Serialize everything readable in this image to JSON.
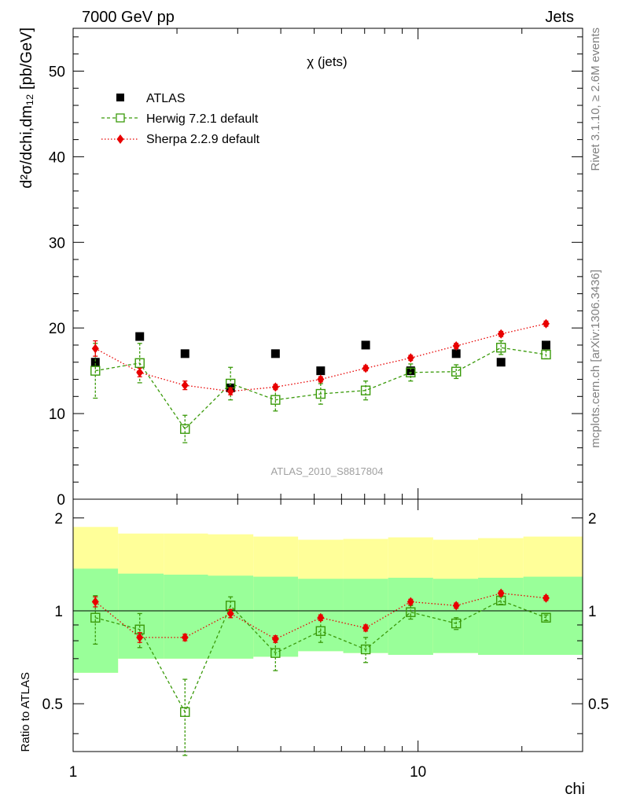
{
  "header": {
    "left": "7000 GeV pp",
    "right": "Jets"
  },
  "side_labels": {
    "rivet": "Rivet 3.1.10, ≥ 2.6M events",
    "mcplots": "mcplots.cern.ch [arXiv:1306.3436]"
  },
  "chart_data": [
    {
      "type": "scatter",
      "title": "χ (jets)",
      "watermark": "ATLAS_2010_S8817804",
      "ylabel": "d²σ/dchi,dm₁₂ [pb/GeV]",
      "xscale": "log",
      "xlim": [
        1,
        30
      ],
      "ylim": [
        0,
        55
      ],
      "yticks": [
        0,
        10,
        20,
        30,
        40,
        50
      ],
      "legend_position": "top-left",
      "series": [
        {
          "name": "ATLAS",
          "color": "#000000",
          "marker": "square-filled",
          "x": [
            1.16,
            1.56,
            2.11,
            2.86,
            3.86,
            5.22,
            7.05,
            9.52,
            12.9,
            17.4,
            23.5
          ],
          "y": [
            16,
            19,
            17,
            13,
            17,
            15,
            18,
            15,
            17,
            16,
            18
          ]
        },
        {
          "name": "Herwig 7.2.1 default",
          "color": "#3a9a0a",
          "marker": "square-open",
          "line": "dashed",
          "x": [
            1.16,
            1.56,
            2.11,
            2.86,
            3.86,
            5.22,
            7.05,
            9.52,
            12.9,
            17.4,
            23.5
          ],
          "y": [
            15.0,
            15.9,
            8.2,
            13.5,
            11.6,
            12.3,
            12.7,
            14.8,
            14.9,
            17.7,
            16.9
          ],
          "yerr": [
            3.2,
            2.3,
            1.6,
            1.9,
            1.3,
            1.2,
            1.1,
            1.0,
            0.8,
            0.8,
            0.5
          ]
        },
        {
          "name": "Sherpa 2.2.9 default",
          "color": "#e80000",
          "marker": "diamond-filled",
          "line": "dotted",
          "x": [
            1.16,
            1.56,
            2.11,
            2.86,
            3.86,
            5.22,
            7.05,
            9.52,
            12.9,
            17.4,
            23.5
          ],
          "y": [
            17.6,
            14.8,
            13.3,
            12.6,
            13.1,
            14.0,
            15.3,
            16.5,
            17.9,
            19.3,
            20.5
          ],
          "yerr": [
            0.9,
            0.5,
            0.5,
            0.4,
            0.3,
            0.3,
            0.3,
            0.3,
            0.3,
            0.3,
            0.3
          ]
        }
      ]
    },
    {
      "type": "scatter",
      "ylabel": "Ratio to ATLAS",
      "xlabel": "chi",
      "xscale": "log",
      "xlim": [
        1,
        30
      ],
      "ylim": [
        0.35,
        2.3
      ],
      "yticks": [
        0.5,
        1,
        2
      ],
      "xticks": [
        1,
        10
      ],
      "bands": {
        "edges": [
          1.0,
          1.35,
          1.83,
          2.46,
          3.33,
          4.49,
          6.07,
          8.19,
          11.06,
          14.93,
          20.2,
          30.0
        ],
        "outer_color": "#ffff99",
        "inner_color": "#99ff99",
        "outer_low": [
          0.63,
          0.7,
          0.7,
          0.7,
          0.71,
          0.74,
          0.73,
          0.72,
          0.73,
          0.72,
          0.72
        ],
        "outer_high": [
          1.87,
          1.78,
          1.78,
          1.77,
          1.74,
          1.7,
          1.71,
          1.73,
          1.7,
          1.72,
          1.74
        ],
        "inner_low": [
          0.63,
          0.7,
          0.7,
          0.7,
          0.71,
          0.74,
          0.73,
          0.72,
          0.73,
          0.72,
          0.72
        ],
        "inner_high": [
          1.37,
          1.32,
          1.31,
          1.3,
          1.29,
          1.27,
          1.27,
          1.28,
          1.27,
          1.28,
          1.29
        ]
      },
      "series": [
        {
          "name": "Herwig 7.2.1 default",
          "color": "#3a9a0a",
          "marker": "square-open",
          "line": "dashed",
          "x": [
            1.16,
            1.56,
            2.11,
            2.86,
            3.86,
            5.22,
            7.05,
            9.52,
            12.9,
            17.4,
            23.5
          ],
          "y": [
            0.95,
            0.87,
            0.47,
            1.04,
            0.73,
            0.86,
            0.75,
            0.99,
            0.91,
            1.08,
            0.95
          ],
          "yerr": [
            0.17,
            0.11,
            0.13,
            0.07,
            0.09,
            0.07,
            0.07,
            0.05,
            0.04,
            0.03,
            0.02
          ]
        },
        {
          "name": "Sherpa 2.2.9 default",
          "color": "#e80000",
          "marker": "diamond-filled",
          "line": "dotted",
          "x": [
            1.16,
            1.56,
            2.11,
            2.86,
            3.86,
            5.22,
            7.05,
            9.52,
            12.9,
            17.4,
            23.5
          ],
          "y": [
            1.07,
            0.82,
            0.82,
            0.98,
            0.81,
            0.95,
            0.88,
            1.07,
            1.04,
            1.14,
            1.1
          ],
          "yerr": [
            0.04,
            0.03,
            0.02,
            0.03,
            0.02,
            0.02,
            0.02,
            0.02,
            0.02,
            0.02,
            0.02
          ]
        }
      ]
    }
  ]
}
